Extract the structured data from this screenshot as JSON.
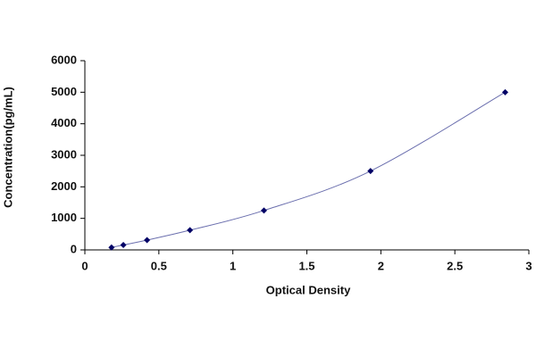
{
  "chart_data": {
    "type": "line",
    "x_label": "Optical Density",
    "y_label": "Concentration(pg/mL)",
    "x": [
      0.18,
      0.26,
      0.42,
      0.71,
      1.21,
      1.93,
      2.84
    ],
    "series": [
      {
        "color": "#000066",
        "values": [
          78,
          156,
          312,
          625,
          1250,
          2500,
          5000
        ]
      }
    ],
    "line_color": "#6b6fae",
    "xlim": [
      0,
      3
    ],
    "xticks": [
      0,
      0.5,
      1,
      1.5,
      2,
      2.5,
      3
    ],
    "ylim": [
      0,
      6000
    ],
    "yticks": [
      0,
      1000,
      2000,
      3000,
      4000,
      5000,
      6000
    ],
    "grid": false
  }
}
